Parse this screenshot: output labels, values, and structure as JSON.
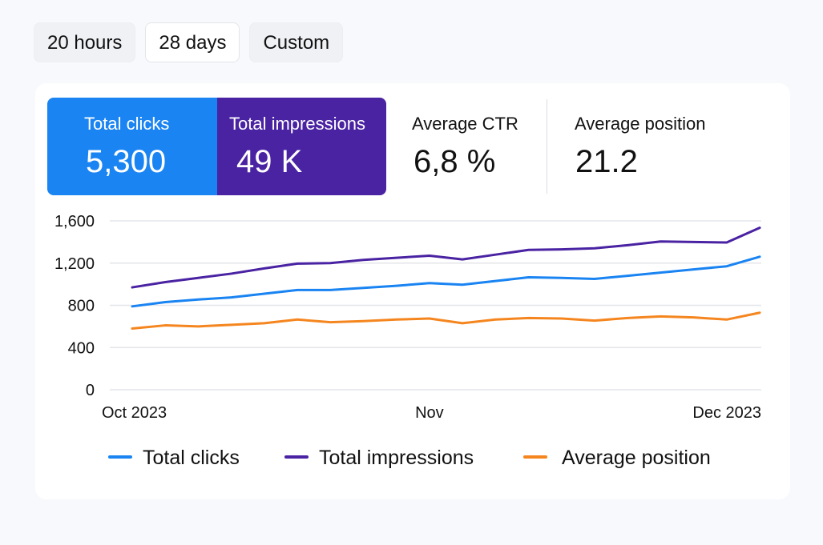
{
  "range_buttons": [
    {
      "label": "20 hours"
    },
    {
      "label": "28 days"
    },
    {
      "label": "Custom"
    }
  ],
  "metrics": {
    "clicks": {
      "label": "Total clicks",
      "value": "5,300"
    },
    "impressions": {
      "label": "Total impressions",
      "value": "49 K"
    },
    "ctr": {
      "label": "Average CTR",
      "value": "6,8 %"
    },
    "position": {
      "label": "Average position",
      "value": "21.2"
    }
  },
  "colors": {
    "clicks": "#1a84f2",
    "impressions": "#4a23a3",
    "position": "#f5861f",
    "grid": "#e4e6ea"
  },
  "chart_data": {
    "type": "line",
    "x": [
      "Oct 2023",
      "",
      "",
      "",
      "",
      "",
      "",
      "",
      "",
      "Nov",
      "",
      "",
      "",
      "",
      "",
      "",
      "",
      "",
      "",
      "Dec 2023"
    ],
    "x_ticks": [
      "Oct 2023",
      "Nov",
      "Dec 2023"
    ],
    "yticks": [
      0,
      400,
      800,
      1200,
      1600
    ],
    "ytick_labels": [
      "0",
      "400",
      "800",
      "1,200",
      "1,600"
    ],
    "ylim": [
      0,
      1600
    ],
    "grid": true,
    "legend_position": "bottom",
    "series": [
      {
        "name": "Total clicks",
        "color_key": "clicks",
        "values": [
          790,
          830,
          855,
          875,
          910,
          945,
          945,
          965,
          985,
          1010,
          995,
          1030,
          1065,
          1060,
          1050,
          1080,
          1110,
          1140,
          1170,
          1260
        ]
      },
      {
        "name": "Total impressions",
        "color_key": "impressions",
        "values": [
          970,
          1020,
          1060,
          1100,
          1150,
          1195,
          1200,
          1230,
          1250,
          1270,
          1235,
          1280,
          1325,
          1330,
          1340,
          1370,
          1405,
          1400,
          1395,
          1535
        ]
      },
      {
        "name": "Average position",
        "color_key": "position",
        "values": [
          580,
          610,
          600,
          615,
          630,
          665,
          640,
          650,
          665,
          675,
          630,
          665,
          680,
          675,
          655,
          680,
          695,
          685,
          665,
          730
        ]
      }
    ]
  }
}
